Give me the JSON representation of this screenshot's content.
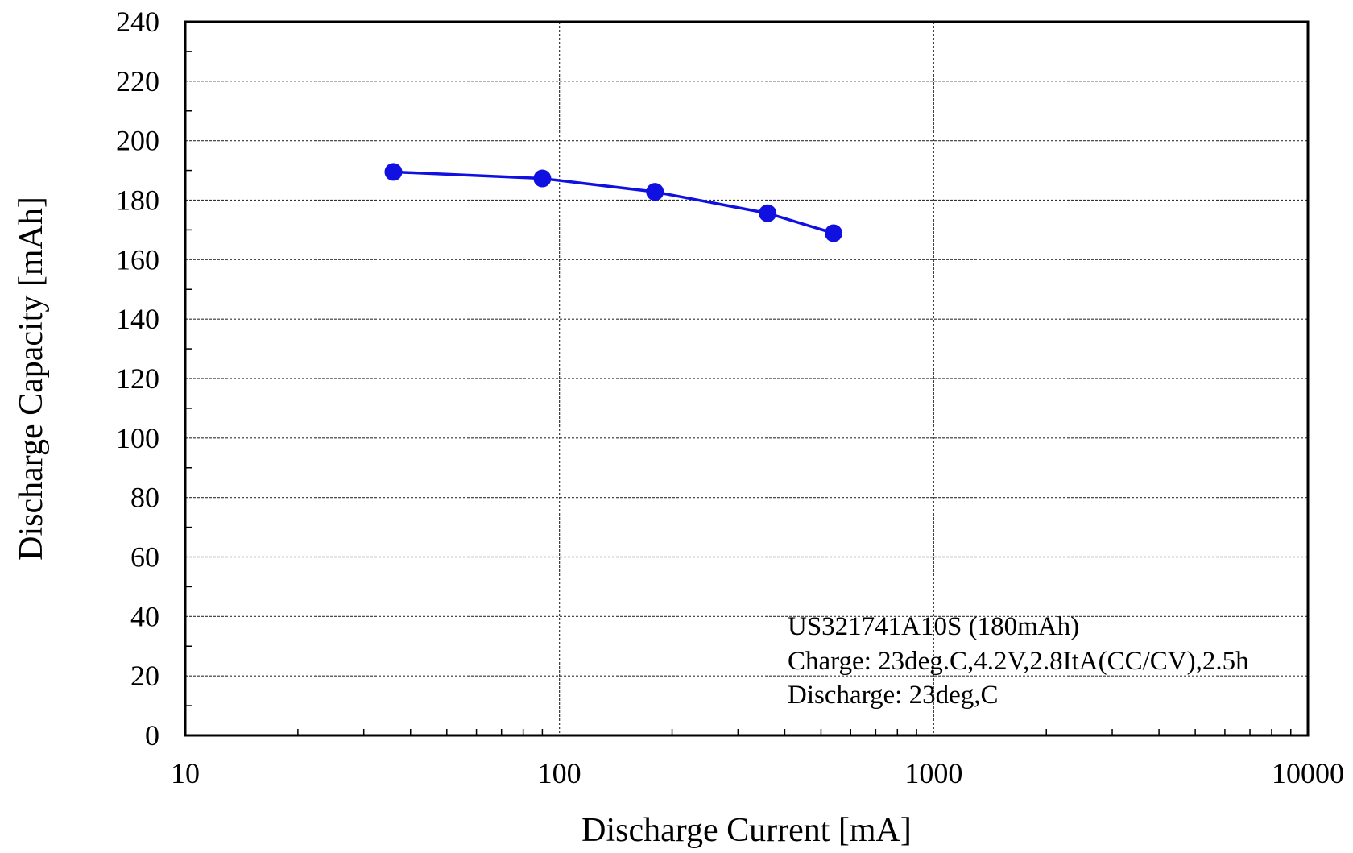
{
  "chart_data": {
    "type": "line",
    "title": "",
    "xlabel": "Discharge Current [mA]",
    "ylabel": "Discharge Capacity [mAh]",
    "x_scale": "log",
    "xlim": [
      10,
      10000
    ],
    "ylim": [
      0,
      240
    ],
    "x_ticks": [
      {
        "value": 10,
        "label": "10"
      },
      {
        "value": 100,
        "label": "100"
      },
      {
        "value": 1000,
        "label": "1000"
      },
      {
        "value": 10000,
        "label": "10000"
      }
    ],
    "y_ticks": [
      {
        "value": 0,
        "label": "0"
      },
      {
        "value": 20,
        "label": "20"
      },
      {
        "value": 40,
        "label": "40"
      },
      {
        "value": 60,
        "label": "60"
      },
      {
        "value": 80,
        "label": "80"
      },
      {
        "value": 100,
        "label": "100"
      },
      {
        "value": 120,
        "label": "120"
      },
      {
        "value": 140,
        "label": "140"
      },
      {
        "value": 160,
        "label": "160"
      },
      {
        "value": 180,
        "label": "180"
      },
      {
        "value": 200,
        "label": "200"
      },
      {
        "value": 220,
        "label": "220"
      },
      {
        "value": 240,
        "label": "240"
      }
    ],
    "grid": true,
    "series": [
      {
        "color": "#1010e0",
        "x": [
          36,
          90,
          180,
          360,
          540
        ],
        "y": [
          189.5,
          187.3,
          182.8,
          175.6,
          168.9
        ]
      }
    ],
    "annotation": {
      "lines": [
        "US321741A10S (180mAh)",
        "Charge: 23deg.C,4.2V,2.8ItA(CC/CV),2.5h",
        "Discharge: 23deg,C"
      ],
      "position": "bottom-right"
    }
  }
}
